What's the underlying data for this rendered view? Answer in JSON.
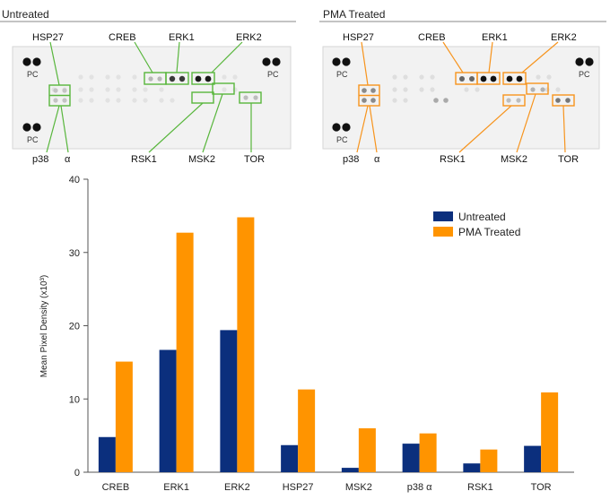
{
  "panels": {
    "untreated": {
      "title": "Untreated",
      "pc": "PC",
      "labels": {
        "hsp27": "HSP27",
        "creb": "CREB",
        "erk1": "ERK1",
        "erk2": "ERK2",
        "p38": "p38",
        "alpha": "α",
        "rsk1": "RSK1",
        "msk2": "MSK2",
        "tor": "TOR"
      }
    },
    "treated": {
      "title": "PMA Treated",
      "pc": "PC",
      "labels": {
        "hsp27": "HSP27",
        "creb": "CREB",
        "erk1": "ERK1",
        "erk2": "ERK2",
        "p38": "p38",
        "alpha": "α",
        "rsk1": "RSK1",
        "msk2": "MSK2",
        "tor": "TOR"
      }
    }
  },
  "colors": {
    "untreated": "#0b2f7d",
    "treated": "#ff9400",
    "untreated_box": "#58b63c",
    "treated_box": "#f7941d"
  },
  "chart_data": {
    "type": "bar",
    "categories": [
      "CREB",
      "ERK1",
      "ERK2",
      "HSP27",
      "MSK2",
      "p38 α",
      "RSK1",
      "TOR"
    ],
    "series": [
      {
        "name": "Untreated",
        "values": [
          4.8,
          16.7,
          19.4,
          3.7,
          0.6,
          3.9,
          1.2,
          3.6
        ]
      },
      {
        "name": "PMA Treated",
        "values": [
          15.1,
          32.7,
          34.8,
          11.3,
          6.0,
          5.3,
          3.1,
          10.9
        ]
      }
    ],
    "ylabel": "Mean Pixel Density (x10³)",
    "yticks": [
      0,
      10,
      20,
      30,
      40
    ],
    "ylim": [
      0,
      40
    ],
    "legend_position": "top-right",
    "grid": false
  }
}
